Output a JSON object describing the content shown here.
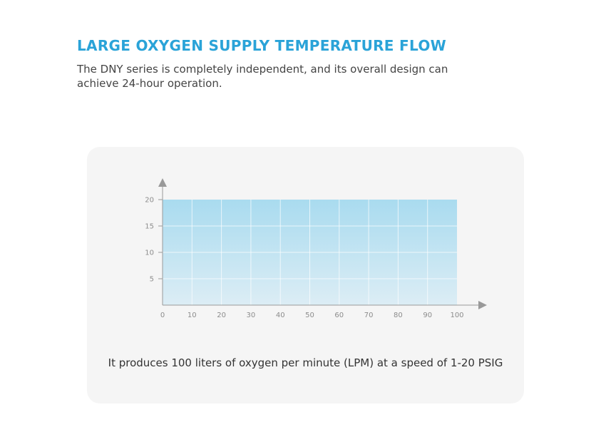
{
  "header": {
    "title": "LARGE OXYGEN SUPPLY TEMPERATURE FLOW",
    "description": "The DNY series is completely independent, and its overall design can achieve 24-hour operation."
  },
  "card": {
    "caption": "It produces 100 liters of oxygen per minute (LPM) at a speed of 1-20 PSIG"
  },
  "chart_data": {
    "type": "area",
    "x": [
      0,
      100
    ],
    "values": [
      20,
      20
    ],
    "xlim": [
      0,
      100
    ],
    "ylim": [
      0,
      20
    ],
    "x_ticks": [
      0,
      10,
      20,
      30,
      40,
      50,
      60,
      70,
      80,
      90,
      100
    ],
    "y_ticks": [
      5,
      10,
      15,
      20
    ],
    "grid": true,
    "legend": "none",
    "title": "",
    "xlabel": "",
    "ylabel": "",
    "fill_top_color": "#a9dbef",
    "fill_bottom_color": "#dcedf5",
    "grid_color": "#ffffff",
    "axis_color": "#999999",
    "tick_label_color": "#8c8c8c"
  }
}
